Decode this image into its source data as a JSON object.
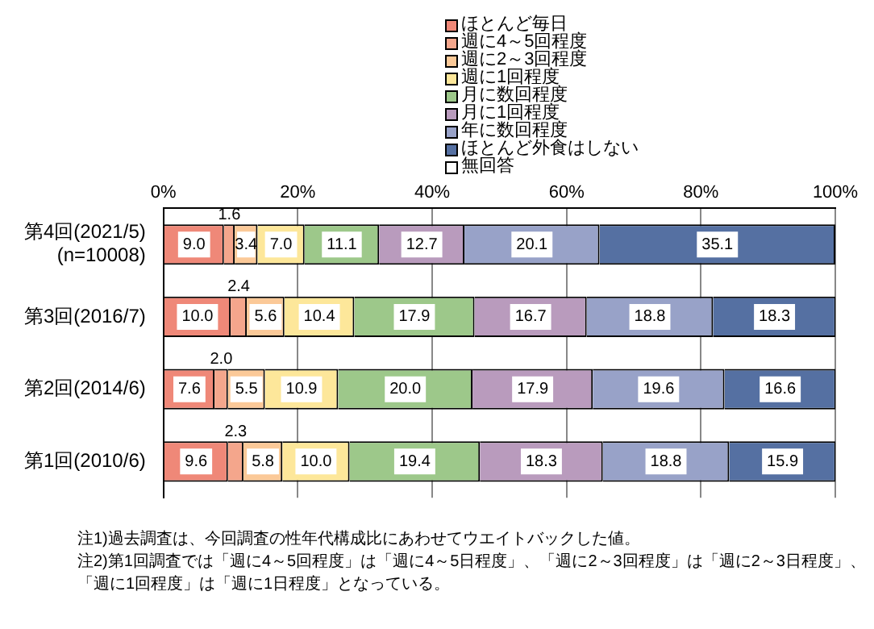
{
  "chart_data": {
    "type": "bar",
    "orientation": "horizontal",
    "stacked": true,
    "categories": [
      "第4回(2021/5)\n(n=10008)",
      "第3回(2016/7)",
      "第2回(2014/6)",
      "第1回(2010/6)"
    ],
    "series": [
      {
        "name": "ほとんど毎日",
        "color": "#ef8878",
        "values": [
          9.0,
          10.0,
          7.6,
          9.6
        ],
        "value_labels": [
          "9.0",
          "10.0",
          "7.6",
          "9.6"
        ]
      },
      {
        "name": "週に4～5回程度",
        "color": "#f4a68c",
        "values": [
          1.6,
          2.4,
          2.0,
          2.3
        ],
        "value_labels": [
          "1.6",
          "2.4",
          "2.0",
          "2.3"
        ]
      },
      {
        "name": "週に2～3回程度",
        "color": "#fbc998",
        "values": [
          3.4,
          5.6,
          5.5,
          5.8
        ],
        "value_labels": [
          "3.4",
          "5.6",
          "5.5",
          "5.8"
        ]
      },
      {
        "name": "週に1回程度",
        "color": "#fde79a",
        "values": [
          7.0,
          10.4,
          10.9,
          10.0
        ],
        "value_labels": [
          "7.0",
          "10.4",
          "10.9",
          "10.0"
        ]
      },
      {
        "name": "月に数回程度",
        "color": "#9dc88a",
        "values": [
          11.1,
          17.9,
          20.0,
          19.4
        ],
        "value_labels": [
          "11.1",
          "17.9",
          "20.0",
          "19.4"
        ]
      },
      {
        "name": "月に1回程度",
        "color": "#b99bbd",
        "values": [
          12.7,
          16.7,
          17.9,
          18.3
        ]
      },
      {
        "name": "年に数回程度",
        "color": "#98a2c8",
        "values": [
          20.1,
          18.8,
          19.6,
          18.8
        ]
      },
      {
        "name": "ほとんど外食はしない",
        "color": "#5570a2",
        "values": [
          35.1,
          18.3,
          16.6,
          15.9
        ]
      },
      {
        "name": "無回答",
        "color": "#ffffff",
        "values": [
          null,
          null,
          null,
          null
        ]
      }
    ],
    "xlim": [
      0,
      100
    ],
    "xticks": [
      {
        "value": 0,
        "label": "0%"
      },
      {
        "value": 20,
        "label": "20%"
      },
      {
        "value": 40,
        "label": "40%"
      },
      {
        "value": 60,
        "label": "60%"
      },
      {
        "value": 80,
        "label": "80%"
      },
      {
        "value": 100,
        "label": "100%"
      }
    ],
    "grid": "x",
    "legend": "top",
    "data_labels": true,
    "annotations": [
      "注1)過去調査は、今回調査の性年代構成比にあわせてウエイトバックした値。",
      "注2)第1回調査では「週に4～5回程度」は「週に4～5日程度」、「週に2～3回程度」は「週に2～3日程度」、「週に1回程度」は「週に1日程度」となっている。"
    ]
  }
}
